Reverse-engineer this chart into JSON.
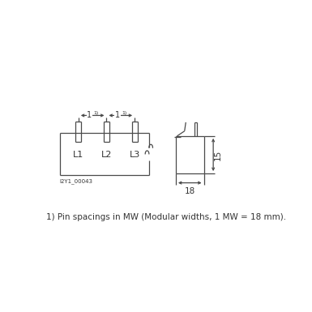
{
  "bg_color": "#ffffff",
  "line_color": "#4a4a4a",
  "text_color": "#333333",
  "footnote": "¹⁾ Pin spacings in MW (Modular widths, 1 MW = 18 mm).",
  "footnote2": "1) Pin spacings in MW (Modular widths, 1 MW = 18 mm).",
  "label_id": "I2Y1_00043",
  "dim_label_18": "18",
  "dim_label_15": "15",
  "phase_labels": [
    "L1",
    "L2",
    "L3"
  ],
  "font_size_label": 6.5,
  "font_size_phase": 8,
  "font_size_dim": 7.5,
  "font_size_footnote": 7.5
}
